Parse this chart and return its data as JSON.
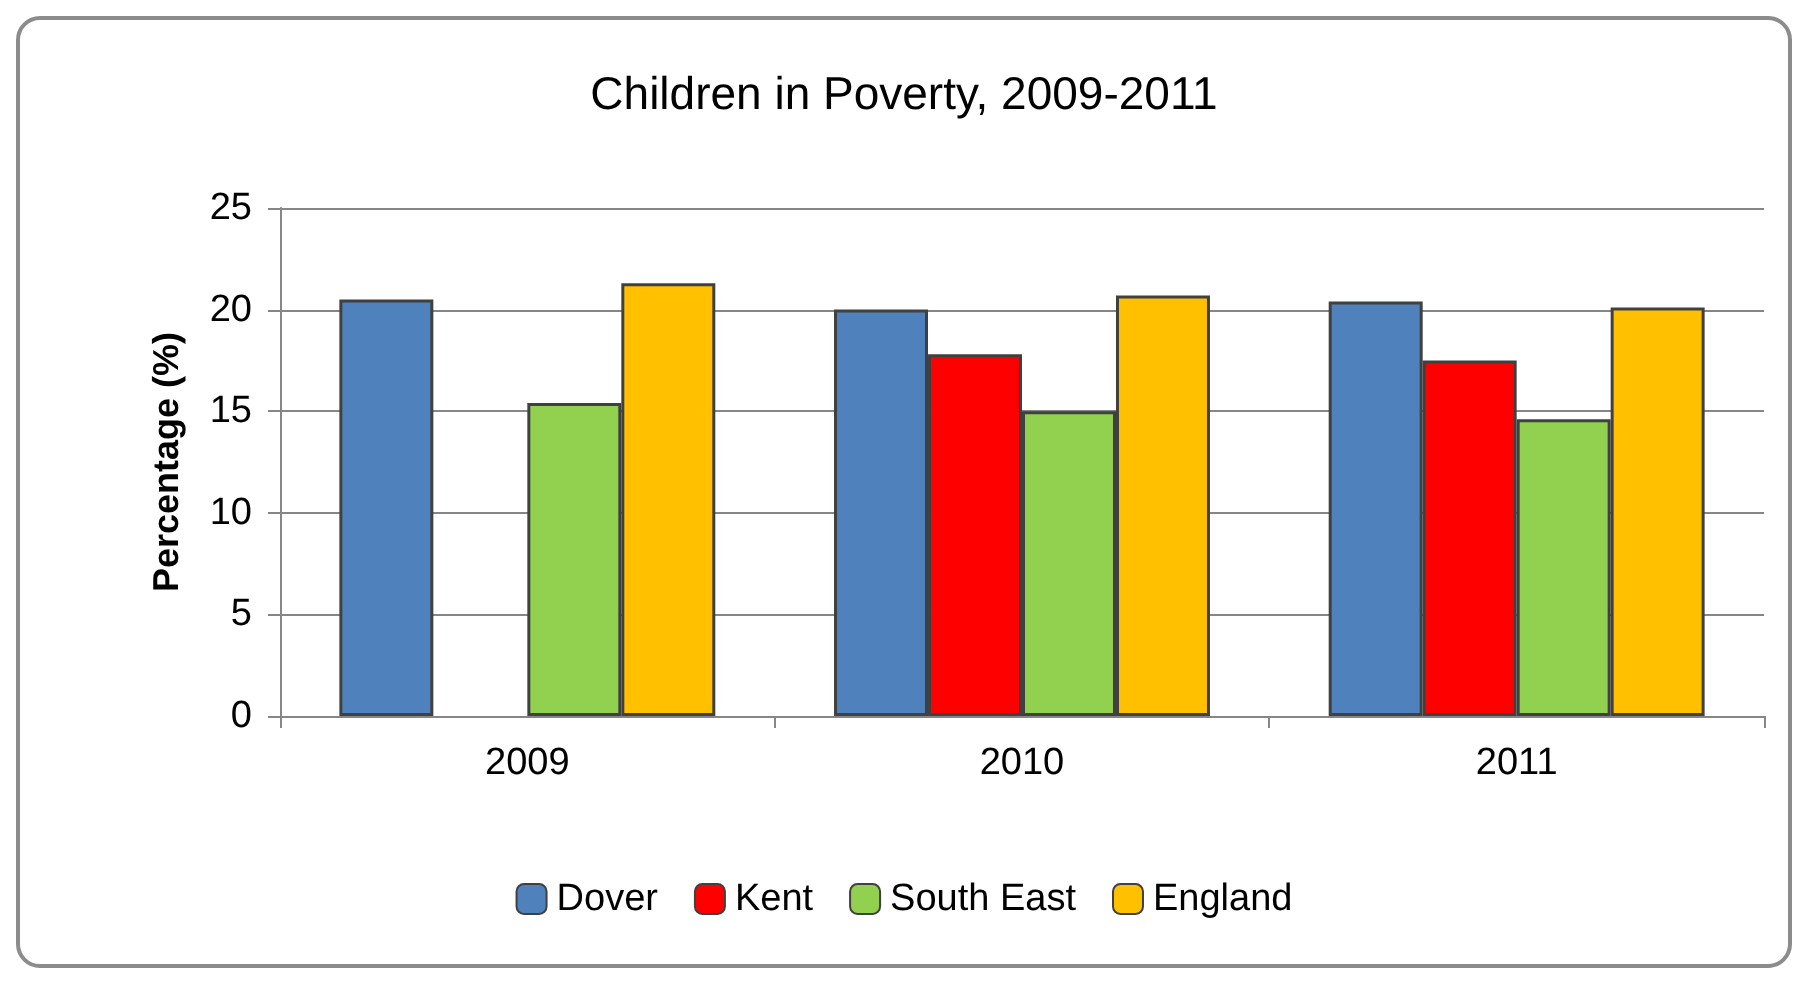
{
  "chart_data": {
    "type": "bar",
    "title": "Children in Poverty, 2009-2011",
    "ylabel": "Percentage (%)",
    "categories": [
      "2009",
      "2010",
      "2011"
    ],
    "series": [
      {
        "name": "Dover",
        "color": "#4f81bd",
        "values": [
          20.5,
          20.0,
          20.4
        ]
      },
      {
        "name": "Kent",
        "color": "#ff0000",
        "values": [
          null,
          17.8,
          17.5
        ]
      },
      {
        "name": "South East",
        "color": "#92d050",
        "values": [
          15.4,
          15.0,
          14.6
        ]
      },
      {
        "name": "England",
        "color": "#ffc000",
        "values": [
          21.3,
          20.7,
          20.1
        ]
      }
    ],
    "ylim": [
      0,
      25
    ],
    "yticks": [
      0,
      5,
      10,
      15,
      20,
      25
    ],
    "grid": "y",
    "legend": "bottom"
  }
}
